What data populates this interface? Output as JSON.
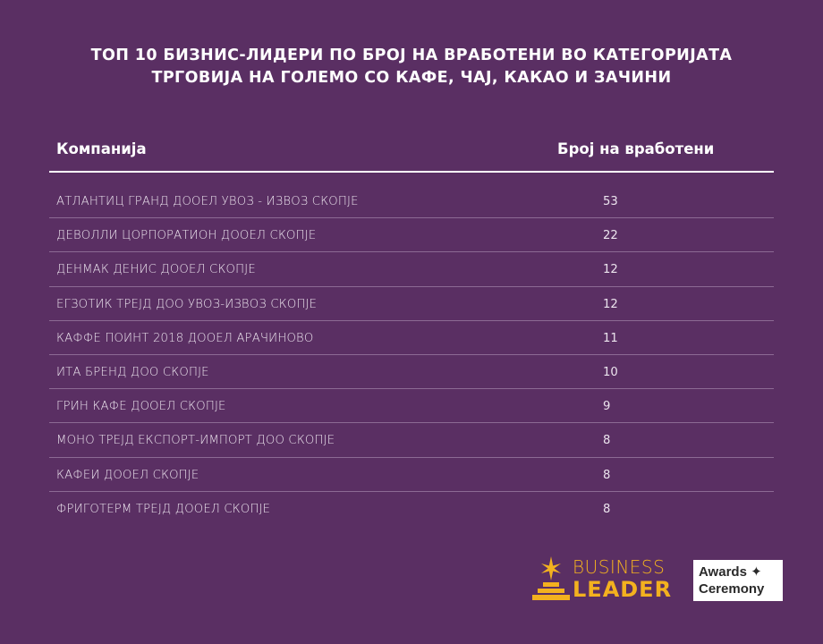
{
  "title_line1": "ТОП 10 БИЗНИС-ЛИДЕРИ ПО БРОЈ НА ВРАБОТЕНИ ВО КАТЕГОРИЈАТА",
  "title_line2": "ТРГОВИЈА НА ГОЛЕМО СО КАФЕ, ЧАЈ, КАКАО И ЗАЧИНИ",
  "colors": {
    "background": "#5a2f63",
    "accent": "#f3b11f"
  },
  "chart_data": {
    "type": "table",
    "title": "ТОП 10 БИЗНИС-ЛИДЕРИ ПО БРОЈ НА ВРАБОТЕНИ ВО КАТЕГОРИЈАТА ТРГОВИЈА НА ГОЛЕМО СО КАФЕ, ЧАЈ, КАКАО И ЗАЧИНИ",
    "columns": [
      "Компанија",
      "Број на вработени"
    ],
    "rows": [
      [
        "АТЛАНТИЦ ГРАНД ДООЕЛ УВОЗ - ИЗВОЗ СКОПЈЕ",
        "53"
      ],
      [
        "ДЕВОЛЛИ ЦОРПОРАТИОН ДООЕЛ СКОПЈЕ",
        "22"
      ],
      [
        "ДЕНМАК ДЕНИС ДООЕЛ СКОПЈЕ",
        "12"
      ],
      [
        "ЕГЗОТИК ТРЕЈД ДОО УВОЗ-ИЗВОЗ СКОПЈЕ",
        "12"
      ],
      [
        "КАФФЕ ПОИНТ 2018 ДООЕЛ АРАЧИНОВО",
        "11"
      ],
      [
        "ИТА БРЕНД ДОО СКОПЈЕ",
        "10"
      ],
      [
        "ГРИН КАФЕ ДООЕЛ СКОПЈЕ",
        "9"
      ],
      [
        "МОНО ТРЕЈД ЕКСПОРТ-ИМПОРТ ДОО СКОПЈЕ",
        "8"
      ],
      [
        "КАФЕИ ДООЕЛ СКОПЈЕ",
        "8"
      ],
      [
        "ФРИГОТЕРМ ТРЕЈД ДООЕЛ СКОПЈЕ",
        "8"
      ]
    ]
  },
  "logo": {
    "line1": "BUSINESS",
    "line2": "LEADER",
    "awards_line1": "Awards",
    "awards_line2": "Ceremony",
    "icon": "star-podium-icon"
  }
}
